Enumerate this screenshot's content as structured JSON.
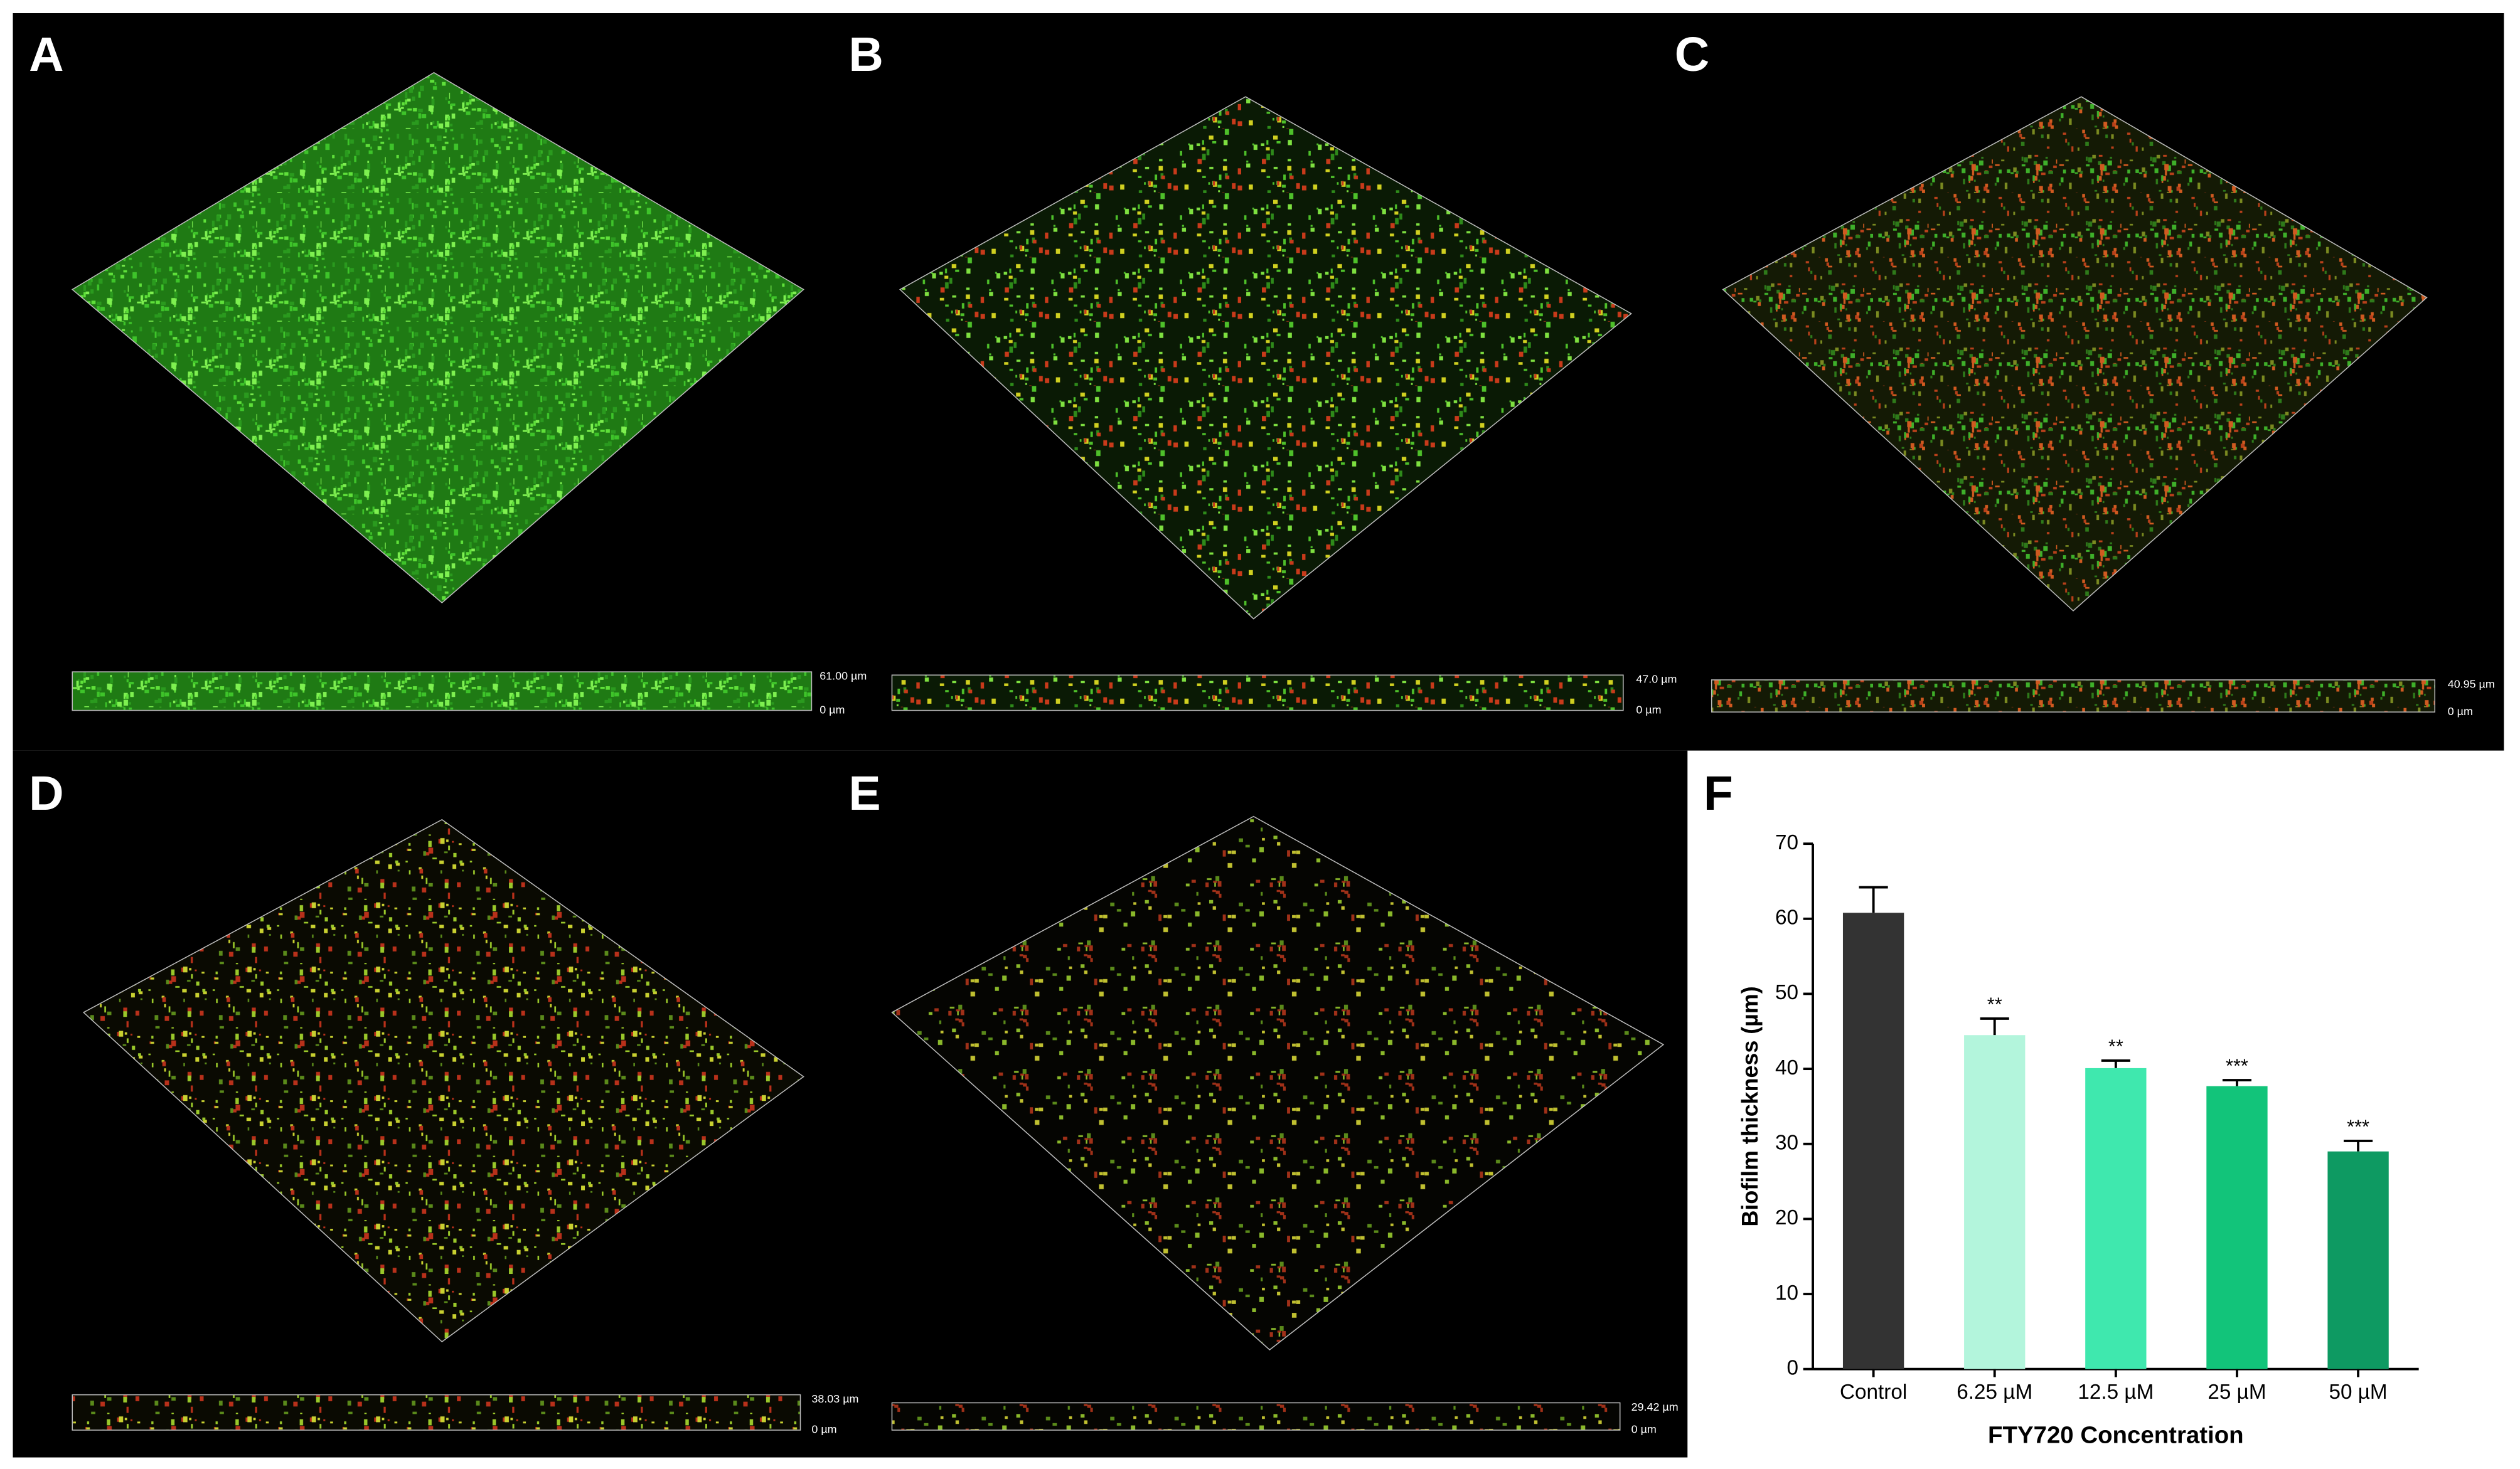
{
  "panels": [
    {
      "label": "A",
      "scale_top": "61.00 µm",
      "scale_bottom": "0 µm"
    },
    {
      "label": "B",
      "scale_top": "47.0 µm",
      "scale_bottom": "0 µm"
    },
    {
      "label": "C",
      "scale_top": "40.95 µm",
      "scale_bottom": "0 µm"
    },
    {
      "label": "D",
      "scale_top": "38.03 µm",
      "scale_bottom": "0 µm"
    },
    {
      "label": "E",
      "scale_top": "29.42 µm",
      "scale_bottom": "0 µm"
    }
  ],
  "chart_data": {
    "type": "bar",
    "panel_label": "F",
    "categories": [
      "Control",
      "6.25 µM",
      "12.5 µM",
      "25 µM",
      "50 µM"
    ],
    "values": [
      60.8,
      44.5,
      40.1,
      37.7,
      29.0
    ],
    "errors": [
      3.4,
      2.2,
      1.0,
      0.8,
      1.4
    ],
    "value_labels": [
      null,
      "**",
      "**",
      "***",
      "***"
    ],
    "colors": [
      "#333333",
      "#b3f5dc",
      "#3fe8ae",
      "#12c47a",
      "#0e9a62"
    ],
    "ylabel": "Biofilm thickness (µm)",
    "xlabel": "FTY720 Concentration",
    "ylim": [
      0,
      70
    ],
    "yticks": [
      0,
      10,
      20,
      30,
      40,
      50,
      60,
      70
    ]
  }
}
